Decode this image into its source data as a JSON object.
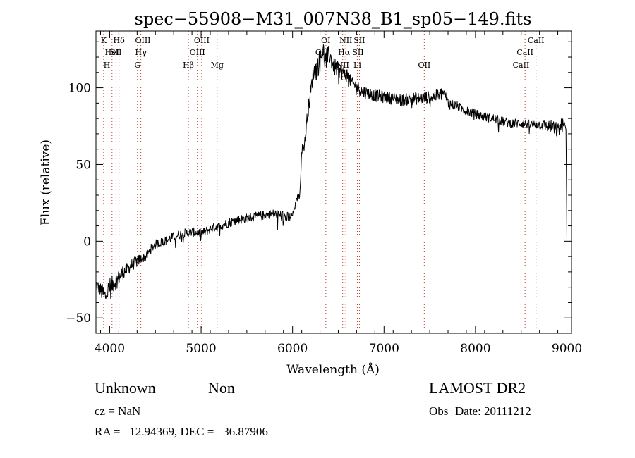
{
  "chart_data": {
    "type": "line",
    "title": "spec−55908−M31_007N38_B1_sp05−149.fits",
    "xlabel": "Wavelength (Å)",
    "ylabel": "Flux (relative)",
    "xlim": [
      3850,
      9050
    ],
    "ylim": [
      -60,
      137
    ],
    "x_ticks": [
      4000,
      5000,
      6000,
      7000,
      8000,
      9000
    ],
    "x_tick_labels": [
      "4000",
      "5000",
      "6000",
      "7000",
      "8000",
      "9000"
    ],
    "y_ticks": [
      -50,
      0,
      50,
      100
    ],
    "y_tick_labels": [
      "−50",
      "0",
      "50",
      "100"
    ],
    "grid": false,
    "series": [
      {
        "color": "#000000",
        "x": [
          3850,
          3900,
          3950,
          4000,
          4050,
          4100,
          4150,
          4200,
          4250,
          4300,
          4350,
          4400,
          4450,
          4500,
          4600,
          4700,
          4800,
          4900,
          5000,
          5100,
          5200,
          5300,
          5400,
          5500,
          5600,
          5700,
          5800,
          5900,
          5950,
          6000,
          6050,
          6080,
          6100,
          6130,
          6150,
          6180,
          6200,
          6230,
          6260,
          6300,
          6330,
          6360,
          6400,
          6450,
          6500,
          6550,
          6600,
          6650,
          6700,
          6750,
          6800,
          6900,
          7000,
          7100,
          7200,
          7300,
          7400,
          7500,
          7600,
          7650,
          7700,
          7800,
          7900,
          8000,
          8100,
          8200,
          8300,
          8400,
          8500,
          8600,
          8700,
          8800,
          8850,
          8900,
          8950,
          8990,
          9000
        ],
        "y": [
          -28,
          -32,
          -36,
          -30,
          -27,
          -24,
          -20,
          -18,
          -15,
          -13,
          -11,
          -10,
          -5,
          -2,
          0,
          3,
          5,
          6,
          5,
          8,
          10,
          12,
          14,
          15,
          16,
          17,
          18,
          16,
          15,
          17,
          28,
          30,
          60,
          62,
          75,
          90,
          98,
          110,
          112,
          118,
          125,
          117,
          122,
          114,
          112,
          110,
          108,
          103,
          101,
          98,
          97,
          95,
          94,
          93,
          92,
          93,
          93,
          94,
          95,
          97,
          90,
          88,
          85,
          83,
          81,
          80,
          78,
          77,
          77,
          76,
          76,
          75,
          74,
          72,
          76,
          73,
          0
        ],
        "noise": [
          5,
          5,
          7,
          6,
          6,
          5,
          5,
          4,
          4,
          4,
          3,
          3,
          3,
          3,
          3,
          3,
          3,
          3,
          3,
          3,
          3,
          3,
          3,
          3,
          3,
          3,
          3,
          4,
          4,
          2,
          2,
          2,
          3,
          3,
          5,
          5,
          6,
          6,
          7,
          8,
          7,
          8,
          6,
          6,
          5,
          5,
          5,
          4,
          4,
          4,
          4,
          4,
          4,
          4,
          4,
          4,
          4,
          4,
          4,
          5,
          4,
          3,
          3,
          3,
          3,
          3,
          3,
          3,
          3,
          3,
          3,
          4,
          5,
          5,
          5,
          4,
          0
        ]
      }
    ],
    "lines": [
      {
        "wave": 3934,
        "label": "K",
        "row": 0
      },
      {
        "wave": 3970,
        "label": "H",
        "row": 2
      },
      {
        "wave": 4026,
        "label": "HeI",
        "row": 1
      },
      {
        "wave": 4102,
        "label": "Hδ",
        "row": 0
      },
      {
        "wave": 4069,
        "label": "SII",
        "row": 1
      },
      {
        "wave": 4304,
        "label": "G",
        "row": 2
      },
      {
        "wave": 4341,
        "label": "Hγ",
        "row": 1
      },
      {
        "wave": 4363,
        "label": "OIII",
        "row": 0
      },
      {
        "wave": 4861,
        "label": "Hβ",
        "row": 2
      },
      {
        "wave": 4959,
        "label": "OIII",
        "row": 1
      },
      {
        "wave": 5007,
        "label": "OIII",
        "row": 0
      },
      {
        "wave": 5175,
        "label": "Mg",
        "row": 2
      },
      {
        "wave": 6300,
        "label": "OI",
        "row": 1
      },
      {
        "wave": 6364,
        "label": "OI",
        "row": 0
      },
      {
        "wave": 6548,
        "label": "NII",
        "row": 2
      },
      {
        "wave": 6563,
        "label": "Hα",
        "row": 1
      },
      {
        "wave": 6583,
        "label": "NII",
        "row": 0
      },
      {
        "wave": 6708,
        "label": "Li",
        "row": 2
      },
      {
        "wave": 6716,
        "label": "SII",
        "row": 1
      },
      {
        "wave": 6731,
        "label": "SII",
        "row": 0
      },
      {
        "wave": 7440,
        "label": "OII",
        "row": 2
      },
      {
        "wave": 8498,
        "label": "CaII",
        "row": 2
      },
      {
        "wave": 8542,
        "label": "CaII",
        "row": 1
      },
      {
        "wave": 8662,
        "label": "CaII",
        "row": 0
      }
    ]
  },
  "info": {
    "class_label": "Unknown",
    "subclass_label": "Non",
    "survey": "LAMOST DR2",
    "cz": "cz = NaN",
    "obs_date": "Obs−Date: 20111212",
    "coords": "RA =   12.94369, DEC =   36.87906"
  }
}
